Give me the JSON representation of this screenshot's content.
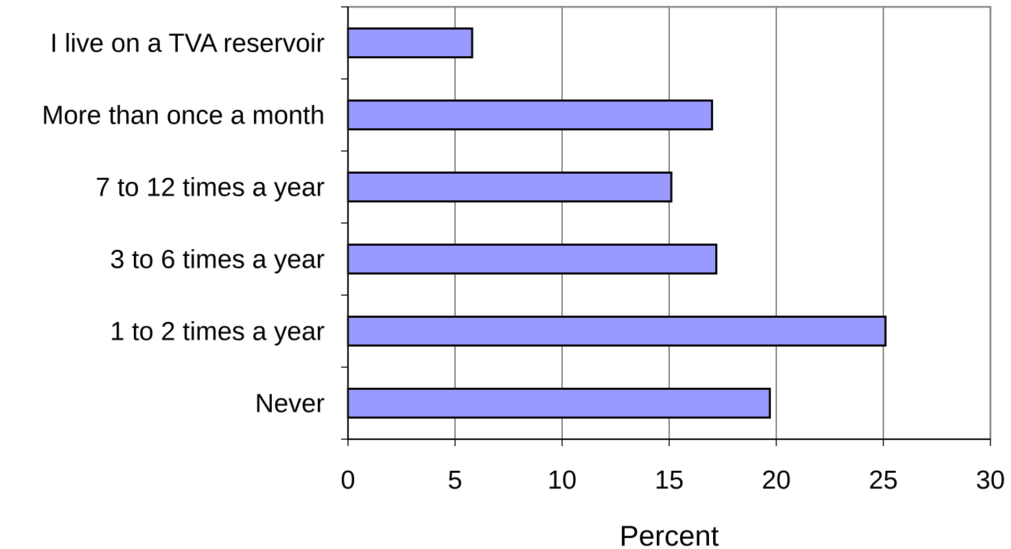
{
  "chart_data": {
    "type": "bar",
    "orientation": "horizontal",
    "categories": [
      "I live on a TVA reservoir",
      "More than once a month",
      "7 to 12 times a year",
      "3 to 6 times a year",
      "1 to 2 times a year",
      "Never"
    ],
    "values": [
      5.8,
      17.0,
      15.1,
      17.2,
      25.1,
      19.7
    ],
    "xlabel": "Percent",
    "ylabel": "",
    "xlim": [
      0,
      30
    ],
    "xticks": [
      "0",
      "5",
      "10",
      "15",
      "20",
      "25",
      "30"
    ],
    "grid": "vertical",
    "bar_color": "#9999ff",
    "bar_edge_color": "#000000",
    "legend": "none"
  }
}
